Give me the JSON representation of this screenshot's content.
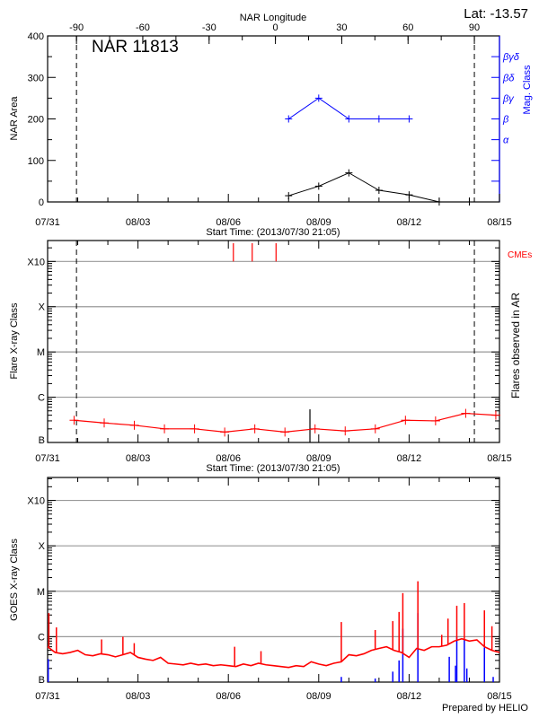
{
  "colors": {
    "axis": "#000000",
    "mag": "#0000ff",
    "flare": "#ff0000",
    "grid": "#999999",
    "goes_long": "#ff0000",
    "goes_short": "#0000ff"
  },
  "header": {
    "lat_label": "Lat: -13.57",
    "prepared_by": "Prepared by HELIO"
  },
  "chart_data": [
    {
      "type": "line",
      "title": "NAR 11813",
      "ylabel": "NAR Area",
      "ylabel_right": "Mag. Class",
      "xlabel_top": "NAR Longitude",
      "xlabel": "Start Time: (2013/07/30 21:05)",
      "xlim": [
        "2013-07-31 00:00",
        "2013-08-15 00:00"
      ],
      "xticks": [
        "07/31",
        "08/03",
        "08/06",
        "08/09",
        "08/12",
        "08/15"
      ],
      "ylim": [
        0,
        400
      ],
      "yticks": [
        "0",
        "100",
        "200",
        "300",
        "400"
      ],
      "top_axis": {
        "ticks": [
          "-90",
          "-60",
          "-30",
          "0",
          "30",
          "60",
          "90"
        ],
        "lon_minus90_date": "2013-07-31 23:00",
        "lon_plus90_date": "2013-08-14 04:00"
      },
      "limb_lines_dashed": [
        "2013-07-31 23:00",
        "2013-08-14 04:00"
      ],
      "mag_class_levels": [
        {
          "label": "α",
          "area_equiv": 150
        },
        {
          "label": "β",
          "area_equiv": 200
        },
        {
          "label": "βγ",
          "area_equiv": 250
        },
        {
          "label": "βδ",
          "area_equiv": 300
        },
        {
          "label": "βγδ",
          "area_equiv": 350
        }
      ],
      "series": [
        {
          "key": "area",
          "x": [
            "2013-08-08 00:00",
            "2013-08-09 00:00",
            "2013-08-10 00:00",
            "2013-08-11 00:00",
            "2013-08-12 00:00",
            "2013-08-13 00:00",
            "2013-08-14 00:00"
          ],
          "values": [
            15,
            38,
            70,
            28,
            17,
            0,
            0
          ]
        },
        {
          "key": "mag_class",
          "x": [
            "2013-08-08 00:00",
            "2013-08-09 00:00",
            "2013-08-10 00:00",
            "2013-08-11 00:00",
            "2013-08-12 00:00"
          ],
          "values": [
            "β",
            "βγ",
            "β",
            "β",
            "β"
          ]
        }
      ]
    },
    {
      "type": "line",
      "ylabel": "Flare X-ray Class",
      "ylabel_right": "Flares observed in AR",
      "xlabel": "Start Time: (2013/07/30 21:05)",
      "xlim": [
        "2013-07-31 00:00",
        "2013-08-15 00:00"
      ],
      "xticks": [
        "07/31",
        "08/03",
        "08/06",
        "08/09",
        "08/12",
        "08/15"
      ],
      "yscale": "log",
      "ylim": [
        1e-07,
        0.0029
      ],
      "yticks": [
        {
          "label": "B",
          "v": 1e-07
        },
        {
          "label": "C",
          "v": 1e-06
        },
        {
          "label": "M",
          "v": 1e-05
        },
        {
          "label": "X",
          "v": 0.0001
        },
        {
          "label": "X10",
          "v": 0.001
        }
      ],
      "grid": true,
      "limb_lines_dashed": [
        "2013-07-31 23:00",
        "2013-08-14 04:00"
      ],
      "cme_label": "CMEs",
      "cmes": [
        "2013-08-06 04:00",
        "2013-08-06 19:00",
        "2013-08-07 14:00"
      ],
      "flares": [
        {
          "x": "2013-08-08 17:00",
          "flux": 5.4e-07
        }
      ],
      "series": [
        {
          "key": "background",
          "x": [
            "2013-07-31 21:05",
            "2013-08-01 21:05",
            "2013-08-02 21:05",
            "2013-08-03 21:05",
            "2013-08-04 21:05",
            "2013-08-05 21:05",
            "2013-08-06 21:05",
            "2013-08-07 21:05",
            "2013-08-08 21:05",
            "2013-08-09 21:05",
            "2013-08-10 21:05",
            "2013-08-11 21:05",
            "2013-08-12 21:05",
            "2013-08-13 21:05",
            "2013-08-14 21:05"
          ],
          "values": [
            3.1e-07,
            2.7e-07,
            2.4e-07,
            2e-07,
            2e-07,
            1.7e-07,
            2e-07,
            1.7e-07,
            2e-07,
            1.8e-07,
            2e-07,
            3.1e-07,
            3e-07,
            4.4e-07,
            4e-07
          ]
        }
      ]
    },
    {
      "type": "line",
      "ylabel": "GOES X-ray Class",
      "xlim": [
        "2013-07-31 00:00",
        "2013-08-15 00:00"
      ],
      "xticks": [
        "07/31",
        "08/03",
        "08/06",
        "08/09",
        "08/12",
        "08/15"
      ],
      "yscale": "log",
      "ylim": [
        1e-07,
        0.0032
      ],
      "yticks": [
        {
          "label": "B",
          "v": 1e-07
        },
        {
          "label": "C",
          "v": 1e-06
        },
        {
          "label": "M",
          "v": 1e-05
        },
        {
          "label": "X",
          "v": 0.0001
        },
        {
          "label": "X10",
          "v": 0.001
        }
      ],
      "grid": true,
      "long_channel": {
        "start": "2013-07-31 00:00",
        "step_hours": 6,
        "values": [
          6e-07,
          4.5e-07,
          4.2e-07,
          4.5e-07,
          5e-07,
          4e-07,
          3.8e-07,
          4.2e-07,
          4e-07,
          3.6e-07,
          4e-07,
          4.5e-07,
          3.5e-07,
          3.2e-07,
          3e-07,
          3.5e-07,
          2.6e-07,
          2.5e-07,
          2.4e-07,
          2.6e-07,
          2.4e-07,
          2.5e-07,
          2.3e-07,
          2.4e-07,
          2.3e-07,
          2.2e-07,
          2.5e-07,
          2.3e-07,
          2.6e-07,
          2.4e-07,
          2.3e-07,
          2.2e-07,
          2.1e-07,
          2.3e-07,
          2.2e-07,
          2.8e-07,
          2.5e-07,
          2.3e-07,
          2.6e-07,
          2.8e-07,
          4e-07,
          3.8e-07,
          4.2e-07,
          5e-07,
          5.5e-07,
          6e-07,
          5e-07,
          4.5e-07,
          3.5e-07,
          5.5e-07,
          5e-07,
          6e-07,
          6e-07,
          6.5e-07,
          8e-07,
          9e-07,
          8e-07,
          8.5e-07,
          6e-07,
          5e-07,
          4.5e-07
        ],
        "peaks": [
          [
            "2013-07-31 01:00",
            3.3e-06
          ],
          [
            "2013-07-31 07:00",
            1.6e-06
          ],
          [
            "2013-08-01 19:00",
            8.7e-07
          ],
          [
            "2013-08-02 12:00",
            1e-06
          ],
          [
            "2013-08-02 21:00",
            7.2e-07
          ],
          [
            "2013-08-06 05:00",
            6e-07
          ],
          [
            "2013-08-07 02:00",
            4.8e-07
          ],
          [
            "2013-08-09 18:00",
            2.1e-06
          ],
          [
            "2013-08-10 21:00",
            1.4e-06
          ],
          [
            "2013-08-11 11:00",
            2.2e-06
          ],
          [
            "2013-08-11 16:00",
            3.5e-06
          ],
          [
            "2013-08-11 19:00",
            9.1e-06
          ],
          [
            "2013-08-12 07:00",
            1.66e-05
          ],
          [
            "2013-08-13 02:00",
            1.1e-06
          ],
          [
            "2013-08-13 07:00",
            2.5e-06
          ],
          [
            "2013-08-13 14:00",
            4.8e-06
          ],
          [
            "2013-08-13 20:00",
            5.5e-06
          ],
          [
            "2013-08-14 12:00",
            3.8e-06
          ],
          [
            "2013-08-14 18:00",
            1.7e-06
          ]
        ]
      },
      "short_channel_spikes": [
        [
          "2013-07-31 00:30",
          3.2e-07
        ],
        [
          "2013-08-09 18:00",
          1.3e-07
        ],
        [
          "2013-08-10 21:00",
          1.2e-07
        ],
        [
          "2013-08-11 11:00",
          1.7e-07
        ],
        [
          "2013-08-11 16:00",
          3e-07
        ],
        [
          "2013-08-11 19:00",
          1.5e-06
        ],
        [
          "2013-08-12 07:00",
          3.3e-06
        ],
        [
          "2013-08-13 08:00",
          3.6e-07
        ],
        [
          "2013-08-13 13:00",
          2.3e-07
        ],
        [
          "2013-08-13 14:00",
          1e-06
        ],
        [
          "2013-08-13 20:00",
          8.7e-07
        ],
        [
          "2013-08-13 22:00",
          2e-07
        ],
        [
          "2013-08-14 12:00",
          5.8e-07
        ],
        [
          "2013-08-14 19:00",
          1.3e-07
        ]
      ]
    }
  ]
}
